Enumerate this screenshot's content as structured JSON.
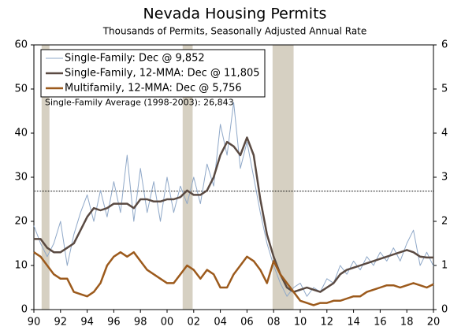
{
  "chart_data": {
    "type": "line",
    "title": "Nevada Housing Permits",
    "subtitle": "Thousands of Permits, Seasonally Adjusted Annual Rate",
    "x": [
      1990,
      1990.5,
      1991,
      1991.5,
      1992,
      1992.5,
      1993,
      1993.5,
      1994,
      1994.5,
      1995,
      1995.5,
      1996,
      1996.5,
      1997,
      1997.5,
      1998,
      1998.5,
      1999,
      1999.5,
      2000,
      2000.5,
      2001,
      2001.5,
      2002,
      2002.5,
      2003,
      2003.5,
      2004,
      2004.5,
      2005,
      2005.5,
      2006,
      2006.5,
      2007,
      2007.5,
      2008,
      2008.5,
      2009,
      2009.5,
      2010,
      2010.5,
      2011,
      2011.5,
      2012,
      2012.5,
      2013,
      2013.5,
      2014,
      2014.5,
      2015,
      2015.5,
      2016,
      2016.5,
      2017,
      2017.5,
      2018,
      2018.5,
      2019,
      2019.5,
      2020
    ],
    "series": [
      {
        "name": "Single-Family: Dec @ 9,852",
        "color": "#8fa8c8",
        "width": 1,
        "values": [
          19,
          15,
          12,
          15,
          20,
          10,
          17,
          22,
          26,
          20,
          27,
          21,
          29,
          22,
          35,
          20,
          32,
          22,
          29,
          20,
          30,
          22,
          28,
          24,
          30,
          24,
          33,
          28,
          42,
          35,
          47,
          32,
          38,
          30,
          22,
          15,
          10,
          6,
          3,
          5,
          6,
          3,
          5,
          4,
          7,
          6,
          10,
          8,
          11,
          9,
          12,
          10,
          13,
          11,
          14,
          11,
          15,
          18,
          10,
          13,
          9.852
        ]
      },
      {
        "name": "Single-Family, 12-MMA: Dec @ 11,805",
        "color": "#5a4a42",
        "width": 2.5,
        "values": [
          16,
          16,
          14,
          13,
          13,
          14,
          15,
          18,
          21,
          23,
          22.5,
          23,
          24,
          24,
          24,
          23,
          25,
          25,
          24.5,
          24.5,
          25,
          25,
          25.5,
          27,
          26,
          26,
          27,
          30,
          35,
          38,
          37,
          35,
          39,
          35,
          25,
          17,
          12,
          8,
          5,
          4,
          4.5,
          5,
          4.5,
          4,
          5,
          6,
          8,
          9,
          9.5,
          10,
          10.5,
          11,
          11.5,
          12,
          12.5,
          13,
          13.5,
          13,
          12,
          11.8,
          11.805
        ]
      },
      {
        "name": "Multifamily, 12-MMA: Dec @ 5,756",
        "color": "#9c5a1c",
        "width": 2.5,
        "values": [
          13,
          12,
          10,
          8,
          7,
          7,
          4,
          3.5,
          3,
          4,
          6,
          10,
          12,
          13,
          12,
          13,
          11,
          9,
          8,
          7,
          6,
          6,
          8,
          10,
          9,
          7,
          9,
          8,
          5,
          5,
          8,
          10,
          12,
          11,
          9,
          6,
          11,
          8,
          6,
          4,
          2,
          1.5,
          1,
          1.5,
          1.5,
          2,
          2,
          2.5,
          3,
          3,
          4,
          4.5,
          5,
          5.5,
          5.5,
          5,
          5.5,
          6,
          5.5,
          5,
          5.756
        ]
      }
    ],
    "recessions": [
      [
        1990.58,
        1991.17
      ],
      [
        2001.17,
        2001.92
      ],
      [
        2007.92,
        2009.5
      ]
    ],
    "recession_color": "#d6d0c2",
    "average_line": 26.843,
    "average_label": "Single-Family Average (1998-2003): 26,843",
    "xlim": [
      1990,
      2020
    ],
    "xticks": [
      {
        "value": 1990,
        "label": "90"
      },
      {
        "value": 1992,
        "label": "92"
      },
      {
        "value": 1994,
        "label": "94"
      },
      {
        "value": 1996,
        "label": "96"
      },
      {
        "value": 1998,
        "label": "98"
      },
      {
        "value": 2000,
        "label": "00"
      },
      {
        "value": 2002,
        "label": "02"
      },
      {
        "value": 2004,
        "label": "04"
      },
      {
        "value": 2006,
        "label": "06"
      },
      {
        "value": 2008,
        "label": "08"
      },
      {
        "value": 2010,
        "label": "10"
      },
      {
        "value": 2012,
        "label": "12"
      },
      {
        "value": 2014,
        "label": "14"
      },
      {
        "value": 2016,
        "label": "16"
      },
      {
        "value": 2018,
        "label": "18"
      },
      {
        "value": 2020,
        "label": "20"
      }
    ],
    "ylim": [
      0,
      60
    ],
    "yticks": [
      0,
      10,
      20,
      30,
      40,
      50,
      60
    ],
    "y2lim": [
      0,
      6
    ],
    "y2ticks": [
      0,
      1,
      2,
      3,
      4,
      5,
      6
    ]
  }
}
